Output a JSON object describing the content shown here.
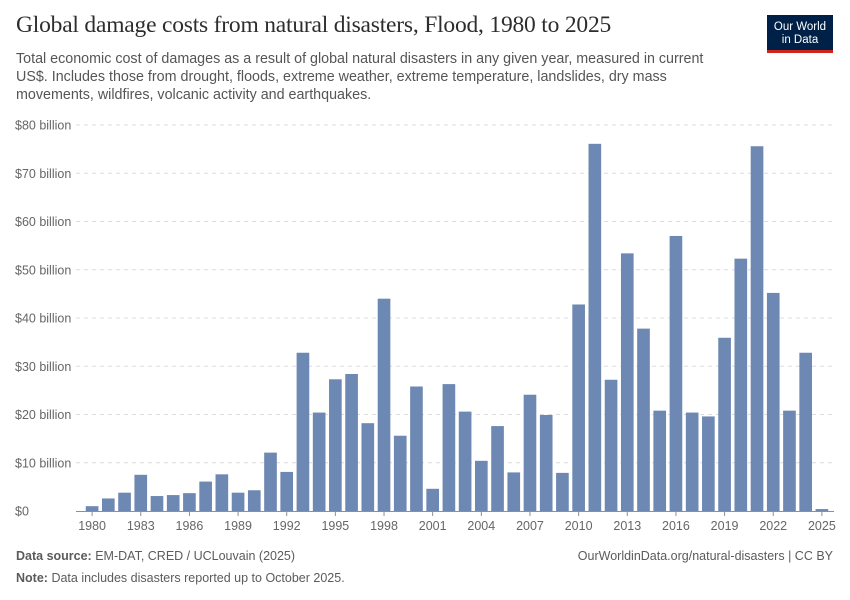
{
  "header": {
    "title": "Global damage costs from natural disasters, Flood, 1980 to 2025",
    "subtitle": "Total economic cost of damages as a result of global natural disasters in any given year, measured in current US$. Includes those from drought, floods, extreme weather, extreme temperature, landslides, dry mass movements, wildfires, volcanic activity and earthquakes."
  },
  "logo": {
    "line1": "Our World",
    "line2": "in Data",
    "bg_color": "#002147",
    "accent_color": "#ce261e"
  },
  "footer": {
    "source_label": "Data source:",
    "source_text": "EM-DAT, CRED / UCLouvain (2025)",
    "url": "OurWorldinData.org/natural-disasters | CC BY",
    "note_label": "Note:",
    "note_text": "Data includes disasters reported up to October 2025."
  },
  "chart_data": {
    "type": "bar",
    "title": "Global damage costs from natural disasters, Flood, 1980 to 2025",
    "xlabel": "",
    "ylabel": "",
    "ylim": [
      0,
      80
    ],
    "yticks": [
      0,
      10,
      20,
      30,
      40,
      50,
      60,
      70,
      80
    ],
    "ytick_labels": [
      "$0",
      "$10 billion",
      "$20 billion",
      "$30 billion",
      "$40 billion",
      "$50 billion",
      "$60 billion",
      "$70 billion",
      "$80 billion"
    ],
    "xtick_labels": [
      "1980",
      "1983",
      "1986",
      "1989",
      "1992",
      "1995",
      "1998",
      "2001",
      "2004",
      "2007",
      "2010",
      "2013",
      "2016",
      "2019",
      "2022",
      "2025"
    ],
    "grid": true,
    "bar_color": "#6d88b2",
    "categories": [
      1980,
      1981,
      1982,
      1983,
      1984,
      1985,
      1986,
      1987,
      1988,
      1989,
      1990,
      1991,
      1992,
      1993,
      1994,
      1995,
      1996,
      1997,
      1998,
      1999,
      2000,
      2001,
      2002,
      2003,
      2004,
      2005,
      2006,
      2007,
      2008,
      2009,
      2010,
      2011,
      2012,
      2013,
      2014,
      2015,
      2016,
      2017,
      2018,
      2019,
      2020,
      2021,
      2022,
      2023,
      2024,
      2025
    ],
    "values": [
      1.0,
      2.6,
      3.8,
      7.5,
      3.1,
      3.3,
      3.7,
      6.1,
      7.6,
      3.8,
      4.3,
      12.1,
      8.1,
      32.8,
      20.4,
      27.3,
      28.4,
      18.2,
      44.0,
      15.6,
      25.8,
      4.6,
      26.3,
      20.6,
      10.4,
      17.6,
      8.0,
      24.1,
      19.9,
      7.9,
      42.8,
      76.1,
      27.2,
      53.4,
      37.8,
      20.8,
      57.0,
      20.4,
      19.6,
      35.9,
      52.3,
      75.6,
      45.2,
      20.8,
      32.8,
      0.4
    ]
  }
}
